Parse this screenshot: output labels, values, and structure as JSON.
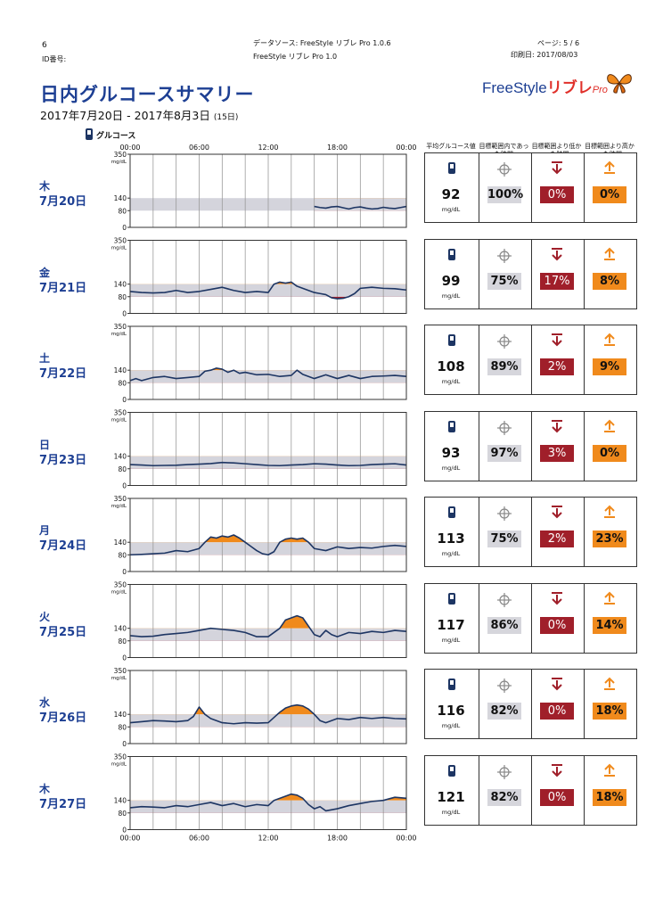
{
  "header": {
    "page_index": "6",
    "id_label": "ID番号:",
    "data_source": "データソース: FreeStyle リブレ Pro 1.0.6",
    "device": "FreeStyle リブレ Pro 1.0",
    "page": "ページ: 5 / 6",
    "printed": "印刷日: 2017/08/03"
  },
  "title": "日内グルコースサマリー",
  "date_range": "2017年7月20日 - 2017年8月3日",
  "date_range_days": "(15日)",
  "logo": {
    "brand": "FreeStyle",
    "libre": "リブレ",
    "pro": "Pro"
  },
  "legend_label": "グルコース",
  "time_labels": [
    "00:00",
    "06:00",
    "12:00",
    "18:00",
    "00:00"
  ],
  "y_ticks": [
    "350",
    "140",
    "80",
    "0"
  ],
  "y_unit": "mg/dL",
  "stat_headers": [
    "平均グルコース値",
    "目標範囲内であった時間",
    "目標範囲より低かった時間",
    "目標範囲より高かった時間"
  ],
  "unit": "mg/dL",
  "colors": {
    "line": "#1d3563",
    "target": "#d4d4dc",
    "high_fill": "#f08a1c",
    "low_fill": "#a01f2a",
    "title_blue": "#1d3f93"
  },
  "chart_data": {
    "type": "line",
    "x_unit": "hour of day",
    "xlim": [
      0,
      24
    ],
    "ylim": [
      0,
      350
    ],
    "target_range": [
      80,
      140
    ],
    "y_ticks": [
      0,
      80,
      140,
      350
    ],
    "x_ticks": [
      "00:00",
      "06:00",
      "12:00",
      "18:00",
      "00:00"
    ],
    "days": [
      {
        "dow": "木",
        "date": "7月20日",
        "avg": "92",
        "in_range": "100%",
        "low": "0%",
        "high": "0%",
        "hours": [
          16,
          16.5,
          17,
          17.5,
          18,
          18.5,
          19,
          19.5,
          20,
          20.5,
          21,
          21.5,
          22,
          22.5,
          23,
          23.5,
          24
        ],
        "glucose": [
          100,
          95,
          92,
          98,
          100,
          94,
          88,
          95,
          98,
          92,
          88,
          90,
          96,
          92,
          90,
          95,
          100
        ]
      },
      {
        "dow": "金",
        "date": "7月21日",
        "avg": "99",
        "in_range": "75%",
        "low": "17%",
        "high": "8%",
        "hours": [
          0,
          1,
          2,
          3,
          4,
          5,
          6,
          7,
          8,
          9,
          10,
          11,
          12,
          12.5,
          13,
          13.5,
          14,
          14.5,
          15,
          15.5,
          16,
          16.5,
          17,
          17.5,
          18,
          18.5,
          19,
          19.5,
          20,
          21,
          22,
          23,
          24
        ],
        "glucose": [
          105,
          100,
          98,
          100,
          110,
          100,
          105,
          115,
          125,
          110,
          100,
          105,
          100,
          140,
          150,
          145,
          150,
          130,
          120,
          110,
          100,
          95,
          90,
          75,
          70,
          72,
          80,
          95,
          120,
          125,
          120,
          118,
          112
        ]
      },
      {
        "dow": "土",
        "date": "7月22日",
        "avg": "108",
        "in_range": "89%",
        "low": "2%",
        "high": "9%",
        "hours": [
          0,
          0.5,
          1,
          2,
          3,
          4,
          5,
          6,
          6.5,
          7,
          7.5,
          8,
          8.5,
          9,
          9.5,
          10,
          11,
          12,
          13,
          14,
          14.5,
          15,
          16,
          17,
          18,
          19,
          20,
          21,
          22,
          23,
          24
        ],
        "glucose": [
          90,
          100,
          90,
          105,
          110,
          100,
          105,
          110,
          135,
          140,
          150,
          145,
          130,
          140,
          125,
          130,
          118,
          120,
          110,
          115,
          140,
          120,
          100,
          118,
          100,
          115,
          100,
          110,
          112,
          115,
          110
        ]
      },
      {
        "dow": "日",
        "date": "7月23日",
        "avg": "93",
        "in_range": "97%",
        "low": "3%",
        "high": "0%",
        "hours": [
          0,
          1,
          2,
          3,
          4,
          5,
          6,
          7,
          8,
          9,
          10,
          11,
          12,
          13,
          14,
          15,
          16,
          17,
          18,
          19,
          20,
          21,
          22,
          23,
          24
        ],
        "glucose": [
          100,
          98,
          95,
          96,
          97,
          100,
          102,
          105,
          110,
          108,
          104,
          100,
          96,
          95,
          98,
          100,
          104,
          102,
          98,
          95,
          96,
          100,
          102,
          104,
          98
        ]
      },
      {
        "dow": "月",
        "date": "7月24日",
        "avg": "113",
        "in_range": "75%",
        "low": "2%",
        "high": "23%",
        "hours": [
          0,
          1,
          2,
          3,
          4,
          5,
          6,
          6.5,
          7,
          7.5,
          8,
          8.5,
          9,
          9.5,
          10,
          10.5,
          11,
          11.5,
          12,
          12.5,
          13,
          13.5,
          14,
          14.5,
          15,
          15.5,
          16,
          17,
          18,
          19,
          20,
          21,
          22,
          23,
          24
        ],
        "glucose": [
          80,
          82,
          85,
          88,
          100,
          95,
          110,
          140,
          165,
          160,
          170,
          165,
          175,
          160,
          140,
          120,
          100,
          85,
          80,
          95,
          140,
          155,
          160,
          155,
          160,
          140,
          110,
          100,
          118,
          110,
          115,
          112,
          120,
          125,
          120
        ]
      },
      {
        "dow": "火",
        "date": "7月25日",
        "avg": "117",
        "in_range": "86%",
        "low": "0%",
        "high": "14%",
        "hours": [
          0,
          1,
          2,
          3,
          4,
          5,
          6,
          7,
          8,
          9,
          10,
          11,
          12,
          13,
          13.5,
          14,
          14.5,
          15,
          15.5,
          16,
          16.5,
          17,
          17.5,
          18,
          19,
          20,
          21,
          22,
          23,
          24
        ],
        "glucose": [
          105,
          100,
          102,
          110,
          115,
          120,
          130,
          140,
          135,
          130,
          120,
          100,
          100,
          140,
          180,
          190,
          200,
          190,
          150,
          110,
          100,
          130,
          110,
          100,
          120,
          115,
          125,
          120,
          130,
          125
        ]
      },
      {
        "dow": "水",
        "date": "7月26日",
        "avg": "116",
        "in_range": "82%",
        "low": "0%",
        "high": "18%",
        "hours": [
          0,
          1,
          2,
          3,
          4,
          5,
          5.5,
          6,
          6.5,
          7,
          8,
          9,
          10,
          11,
          12,
          12.5,
          13,
          13.5,
          14,
          14.5,
          15,
          15.5,
          16,
          16.5,
          17,
          18,
          19,
          20,
          21,
          22,
          23,
          24
        ],
        "glucose": [
          100,
          105,
          110,
          108,
          105,
          110,
          130,
          175,
          140,
          120,
          100,
          95,
          100,
          98,
          100,
          125,
          150,
          170,
          180,
          185,
          180,
          165,
          140,
          110,
          100,
          120,
          115,
          125,
          120,
          125,
          120,
          118
        ]
      },
      {
        "dow": "木",
        "date": "7月27日",
        "avg": "121",
        "in_range": "82%",
        "low": "0%",
        "high": "18%",
        "hours": [
          0,
          1,
          2,
          3,
          4,
          5,
          6,
          7,
          8,
          9,
          10,
          11,
          12,
          12.5,
          13,
          13.5,
          14,
          14.5,
          15,
          15.5,
          16,
          16.5,
          17,
          18,
          19,
          20,
          21,
          22,
          23,
          24
        ],
        "glucose": [
          105,
          110,
          108,
          105,
          115,
          110,
          120,
          130,
          115,
          125,
          110,
          120,
          115,
          140,
          150,
          160,
          170,
          165,
          150,
          120,
          100,
          110,
          90,
          100,
          115,
          125,
          135,
          140,
          155,
          150
        ]
      }
    ]
  }
}
